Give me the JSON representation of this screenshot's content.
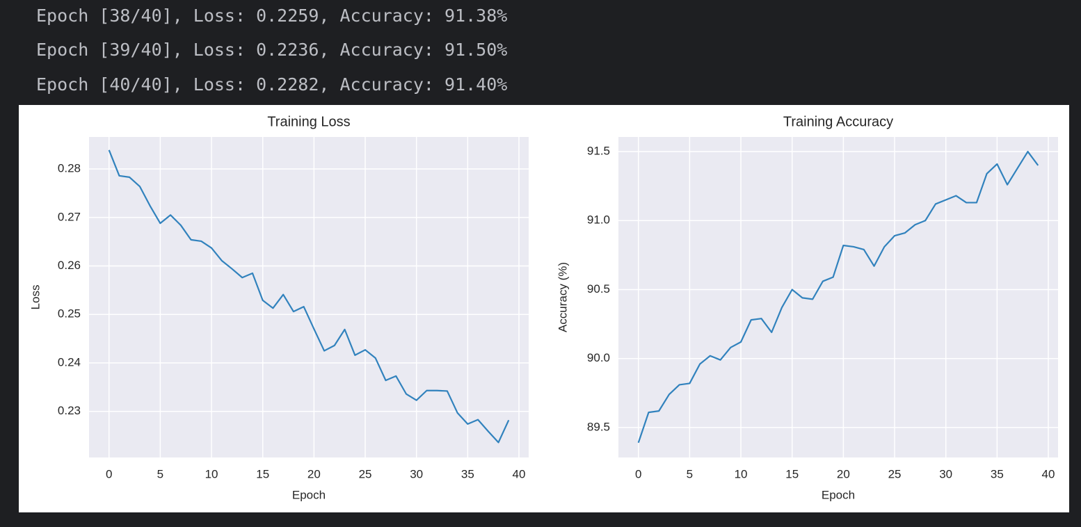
{
  "console": [
    "Epoch [38/40], Loss: 0.2259, Accuracy: 91.38%",
    "Epoch [39/40], Loss: 0.2236, Accuracy: 91.50%",
    "Epoch [40/40], Loss: 0.2282, Accuracy: 91.40%"
  ],
  "chart_data": [
    {
      "type": "line",
      "title": "Training Loss",
      "xlabel": "Epoch",
      "ylabel": "Loss",
      "color": "#3182bd",
      "grid": true,
      "x": [
        0,
        1,
        2,
        3,
        4,
        5,
        6,
        7,
        8,
        9,
        10,
        11,
        12,
        13,
        14,
        15,
        16,
        17,
        18,
        19,
        20,
        21,
        22,
        23,
        24,
        25,
        26,
        27,
        28,
        29,
        30,
        31,
        32,
        33,
        34,
        35,
        36,
        37,
        38,
        39
      ],
      "values": [
        0.2839,
        0.2786,
        0.2783,
        0.2764,
        0.2724,
        0.2688,
        0.2705,
        0.2684,
        0.2654,
        0.2651,
        0.2637,
        0.2611,
        0.2594,
        0.2576,
        0.2585,
        0.2529,
        0.2513,
        0.2541,
        0.2506,
        0.2516,
        0.247,
        0.2425,
        0.2436,
        0.2469,
        0.2416,
        0.2427,
        0.241,
        0.2364,
        0.2373,
        0.2336,
        0.2323,
        0.2343,
        0.2343,
        0.2342,
        0.2297,
        0.2274,
        0.2283,
        0.2259,
        0.2236,
        0.2282
      ],
      "xlim": [
        -1.95,
        40.95
      ],
      "xticks": [
        0,
        5,
        10,
        15,
        20,
        25,
        30,
        35,
        40
      ],
      "ylim": [
        0.2205,
        0.2866
      ],
      "yticks": [
        0.23,
        0.24,
        0.25,
        0.26,
        0.27,
        0.28
      ]
    },
    {
      "type": "line",
      "title": "Training Accuracy",
      "xlabel": "Epoch",
      "ylabel": "Accuracy (%)",
      "color": "#3182bd",
      "grid": true,
      "x": [
        0,
        1,
        2,
        3,
        4,
        5,
        6,
        7,
        8,
        9,
        10,
        11,
        12,
        13,
        14,
        15,
        16,
        17,
        18,
        19,
        20,
        21,
        22,
        23,
        24,
        25,
        26,
        27,
        28,
        29,
        30,
        31,
        32,
        33,
        34,
        35,
        36,
        37,
        38,
        39
      ],
      "values": [
        89.39,
        89.61,
        89.62,
        89.74,
        89.81,
        89.82,
        89.96,
        90.02,
        89.99,
        90.08,
        90.12,
        90.28,
        90.29,
        90.19,
        90.37,
        90.5,
        90.44,
        90.43,
        90.56,
        90.59,
        90.82,
        90.81,
        90.79,
        90.67,
        90.81,
        90.89,
        90.91,
        90.97,
        91.0,
        91.12,
        91.15,
        91.18,
        91.13,
        91.13,
        91.34,
        91.41,
        91.26,
        91.38,
        91.5,
        91.4
      ],
      "xlim": [
        -1.95,
        40.95
      ],
      "xticks": [
        0,
        5,
        10,
        15,
        20,
        25,
        30,
        35,
        40
      ],
      "ylim": [
        89.283,
        91.606
      ],
      "yticks": [
        89.5,
        {
          "value": 90,
          "label": "90.0"
        },
        90.5,
        {
          "value": 91,
          "label": "91.0"
        },
        91.5
      ]
    }
  ]
}
